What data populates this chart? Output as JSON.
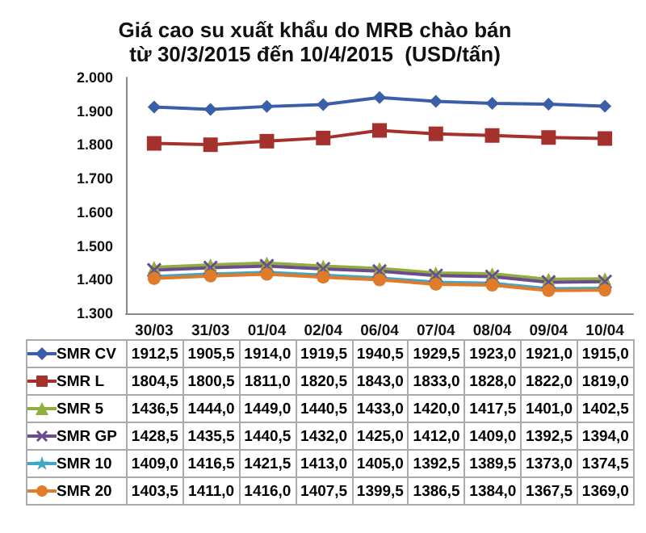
{
  "chart_data": {
    "type": "line",
    "title": "Giá cao su xuất khẩu do MRB chào bán\ntừ 30/3/2015 đến 10/4/2015  (USD/tấn)",
    "categories": [
      "30/03",
      "31/03",
      "01/04",
      "02/04",
      "06/04",
      "07/04",
      "08/04",
      "09/04",
      "10/04"
    ],
    "ylim": [
      1300,
      2000
    ],
    "yticks": [
      {
        "value": 1300,
        "label": "1.300"
      },
      {
        "value": 1400,
        "label": "1.400"
      },
      {
        "value": 1500,
        "label": "1.500"
      },
      {
        "value": 1600,
        "label": "1.600"
      },
      {
        "value": 1700,
        "label": "1.700"
      },
      {
        "value": 1800,
        "label": "1.800"
      },
      {
        "value": 1900,
        "label": "1.900"
      },
      {
        "value": 2000,
        "label": "2.000"
      }
    ],
    "grid": false,
    "legend": "bottom",
    "series": [
      {
        "name": "SMR CV",
        "color": "#3a5ea8",
        "marker": "diamond",
        "values": [
          1912.5,
          1905.5,
          1914.0,
          1919.5,
          1940.5,
          1929.5,
          1923.0,
          1921.0,
          1915.0
        ],
        "value_labels": [
          "1912,5",
          "1905,5",
          "1914,0",
          "1919,5",
          "1940,5",
          "1929,5",
          "1923,0",
          "1921,0",
          "1915,0"
        ]
      },
      {
        "name": "SMR L",
        "color": "#a5312c",
        "marker": "square",
        "values": [
          1804.5,
          1800.5,
          1811.0,
          1820.5,
          1843.0,
          1833.0,
          1828.0,
          1822.0,
          1819.0
        ],
        "value_labels": [
          "1804,5",
          "1800,5",
          "1811,0",
          "1820,5",
          "1843,0",
          "1833,0",
          "1828,0",
          "1822,0",
          "1819,0"
        ]
      },
      {
        "name": "SMR  5",
        "color": "#8fae3c",
        "marker": "triangle",
        "values": [
          1436.5,
          1444.0,
          1449.0,
          1440.5,
          1433.0,
          1420.0,
          1417.5,
          1401.0,
          1402.5
        ],
        "value_labels": [
          "1436,5",
          "1444,0",
          "1449,0",
          "1440,5",
          "1433,0",
          "1420,0",
          "1417,5",
          "1401,0",
          "1402,5"
        ]
      },
      {
        "name": "SMR GP",
        "color": "#6a4c8f",
        "marker": "cross",
        "values": [
          1428.5,
          1435.5,
          1440.5,
          1432.0,
          1425.0,
          1412.0,
          1409.0,
          1392.5,
          1394.0
        ],
        "value_labels": [
          "1428,5",
          "1435,5",
          "1440,5",
          "1432,0",
          "1425,0",
          "1412,0",
          "1409,0",
          "1392,5",
          "1394,0"
        ]
      },
      {
        "name": "SMR  10",
        "color": "#3fa7c4",
        "marker": "star",
        "values": [
          1409.0,
          1416.5,
          1421.5,
          1413.0,
          1405.0,
          1392.5,
          1389.5,
          1373.0,
          1374.5
        ],
        "value_labels": [
          "1409,0",
          "1416,5",
          "1421,5",
          "1413,0",
          "1405,0",
          "1392,5",
          "1389,5",
          "1373,0",
          "1374,5"
        ]
      },
      {
        "name": "SMR 20",
        "color": "#e07b2a",
        "marker": "circle",
        "values": [
          1403.5,
          1411.0,
          1416.0,
          1407.5,
          1399.5,
          1386.5,
          1384.0,
          1367.5,
          1369.0
        ],
        "value_labels": [
          "1403,5",
          "1411,0",
          "1416,0",
          "1407,5",
          "1399,5",
          "1386,5",
          "1384,0",
          "1367,5",
          "1369,0"
        ]
      }
    ]
  }
}
